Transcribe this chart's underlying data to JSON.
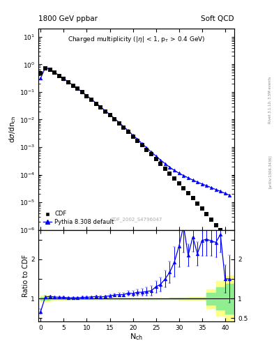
{
  "title_left": "1800 GeV ppbar",
  "title_right": "Soft QCD",
  "plot_title": "Charged multiplicity (|\\u03b7| < 1, p_{T} > 0.4 GeV)",
  "xlabel": "N_{ch}",
  "ylabel_main": "d\\u03c3/dn_{ch}",
  "ylabel_ratio": "Ratio to CDF",
  "watermark": "CDF_2002_S4796047",
  "right_label": "Rivet 3.1.10, 3.5M events",
  "right_label2": "[arXiv:1306.3436]",
  "cdf_x": [
    0,
    1,
    2,
    3,
    4,
    5,
    6,
    7,
    8,
    9,
    10,
    11,
    12,
    13,
    14,
    15,
    16,
    17,
    18,
    19,
    20,
    21,
    22,
    23,
    24,
    25,
    26,
    27,
    28,
    29,
    30,
    31,
    32,
    33,
    34,
    35,
    36,
    37,
    38,
    39,
    40,
    41
  ],
  "cdf_y": [
    0.48,
    0.73,
    0.65,
    0.5,
    0.39,
    0.295,
    0.228,
    0.172,
    0.13,
    0.097,
    0.072,
    0.053,
    0.038,
    0.028,
    0.02,
    0.0143,
    0.0102,
    0.0072,
    0.005,
    0.0035,
    0.0024,
    0.00168,
    0.00116,
    0.0008,
    0.00055,
    0.00037,
    0.00025,
    0.000168,
    0.000112,
    7.4e-05,
    4.9e-05,
    3.2e-05,
    2.1e-05,
    1.4e-05,
    9e-06,
    5.8e-06,
    3.7e-06,
    2.3e-06,
    1.5e-06,
    9.5e-07,
    6e-07,
    3.8e-07
  ],
  "pythia_x": [
    0,
    1,
    2,
    3,
    4,
    5,
    6,
    7,
    8,
    9,
    10,
    11,
    12,
    13,
    14,
    15,
    16,
    17,
    18,
    19,
    20,
    21,
    22,
    23,
    24,
    25,
    26,
    27,
    28,
    29,
    30,
    31,
    32,
    33,
    34,
    35,
    36,
    37,
    38,
    39,
    40,
    41
  ],
  "pythia_y": [
    0.32,
    0.76,
    0.68,
    0.52,
    0.4,
    0.304,
    0.233,
    0.176,
    0.133,
    0.1,
    0.074,
    0.055,
    0.04,
    0.029,
    0.021,
    0.0153,
    0.0111,
    0.0079,
    0.0055,
    0.004,
    0.0027,
    0.00195,
    0.00134,
    0.00094,
    0.00066,
    0.00048,
    0.00034,
    0.000252,
    0.000187,
    0.000143,
    0.000114,
    9.3e-05,
    7.7e-05,
    6.4e-05,
    5.4e-05,
    4.6e-05,
    4e-05,
    3.4e-05,
    2.9e-05,
    2.5e-05,
    2.1e-05,
    1.8e-05
  ],
  "ratio_x": [
    0,
    1,
    2,
    3,
    4,
    5,
    6,
    7,
    8,
    9,
    10,
    11,
    12,
    13,
    14,
    15,
    16,
    17,
    18,
    19,
    20,
    21,
    22,
    23,
    24,
    25,
    26,
    27,
    28,
    29,
    30,
    31,
    32,
    33,
    34,
    35,
    36,
    37,
    38,
    39,
    40,
    41
  ],
  "ratio_y": [
    0.67,
    1.04,
    1.05,
    1.04,
    1.03,
    1.03,
    1.02,
    1.02,
    1.02,
    1.03,
    1.03,
    1.04,
    1.05,
    1.04,
    1.05,
    1.07,
    1.09,
    1.1,
    1.1,
    1.14,
    1.13,
    1.16,
    1.16,
    1.18,
    1.2,
    1.3,
    1.36,
    1.5,
    1.67,
    1.93,
    2.33,
    2.91,
    2.1,
    2.57,
    2.14,
    2.48,
    2.51,
    2.47,
    2.43,
    2.63,
    1.5,
    1.5
  ],
  "ratio_err": [
    0.06,
    0.03,
    0.02,
    0.02,
    0.02,
    0.02,
    0.02,
    0.02,
    0.02,
    0.02,
    0.02,
    0.02,
    0.03,
    0.03,
    0.03,
    0.04,
    0.04,
    0.05,
    0.05,
    0.06,
    0.07,
    0.08,
    0.09,
    0.1,
    0.12,
    0.15,
    0.18,
    0.22,
    0.28,
    0.38,
    0.52,
    0.68,
    0.28,
    0.38,
    0.3,
    0.4,
    0.42,
    0.38,
    0.38,
    0.45,
    0.35,
    0.6
  ],
  "yellow_band_x": [
    0,
    2,
    4,
    6,
    8,
    10,
    12,
    14,
    16,
    18,
    20,
    22,
    24,
    26,
    28,
    30,
    32,
    34,
    36,
    38,
    40,
    42
  ],
  "yellow_lo": [
    0.93,
    0.97,
    0.975,
    0.978,
    0.98,
    0.982,
    0.983,
    0.984,
    0.985,
    0.985,
    0.985,
    0.984,
    0.982,
    0.98,
    0.977,
    0.973,
    0.968,
    0.96,
    0.76,
    0.55,
    0.42,
    0.4
  ],
  "yellow_hi": [
    1.07,
    1.03,
    1.025,
    1.022,
    1.02,
    1.018,
    1.017,
    1.016,
    1.015,
    1.015,
    1.015,
    1.016,
    1.018,
    1.02,
    1.023,
    1.027,
    1.032,
    1.04,
    1.24,
    1.45,
    1.58,
    1.6
  ],
  "green_lo": [
    0.97,
    0.985,
    0.988,
    0.99,
    0.991,
    0.992,
    0.993,
    0.993,
    0.993,
    0.993,
    0.993,
    0.992,
    0.991,
    0.99,
    0.988,
    0.986,
    0.983,
    0.979,
    0.85,
    0.72,
    0.62,
    0.6
  ],
  "green_hi": [
    1.03,
    1.015,
    1.012,
    1.01,
    1.009,
    1.008,
    1.007,
    1.007,
    1.007,
    1.007,
    1.007,
    1.008,
    1.009,
    1.01,
    1.012,
    1.014,
    1.017,
    1.021,
    1.15,
    1.28,
    1.38,
    1.4
  ],
  "ylim_main": [
    1e-06,
    20
  ],
  "ylim_ratio": [
    0.42,
    2.75
  ],
  "xlim": [
    -0.5,
    42
  ],
  "ratio_ylim_plot": [
    0.4,
    2.75
  ]
}
